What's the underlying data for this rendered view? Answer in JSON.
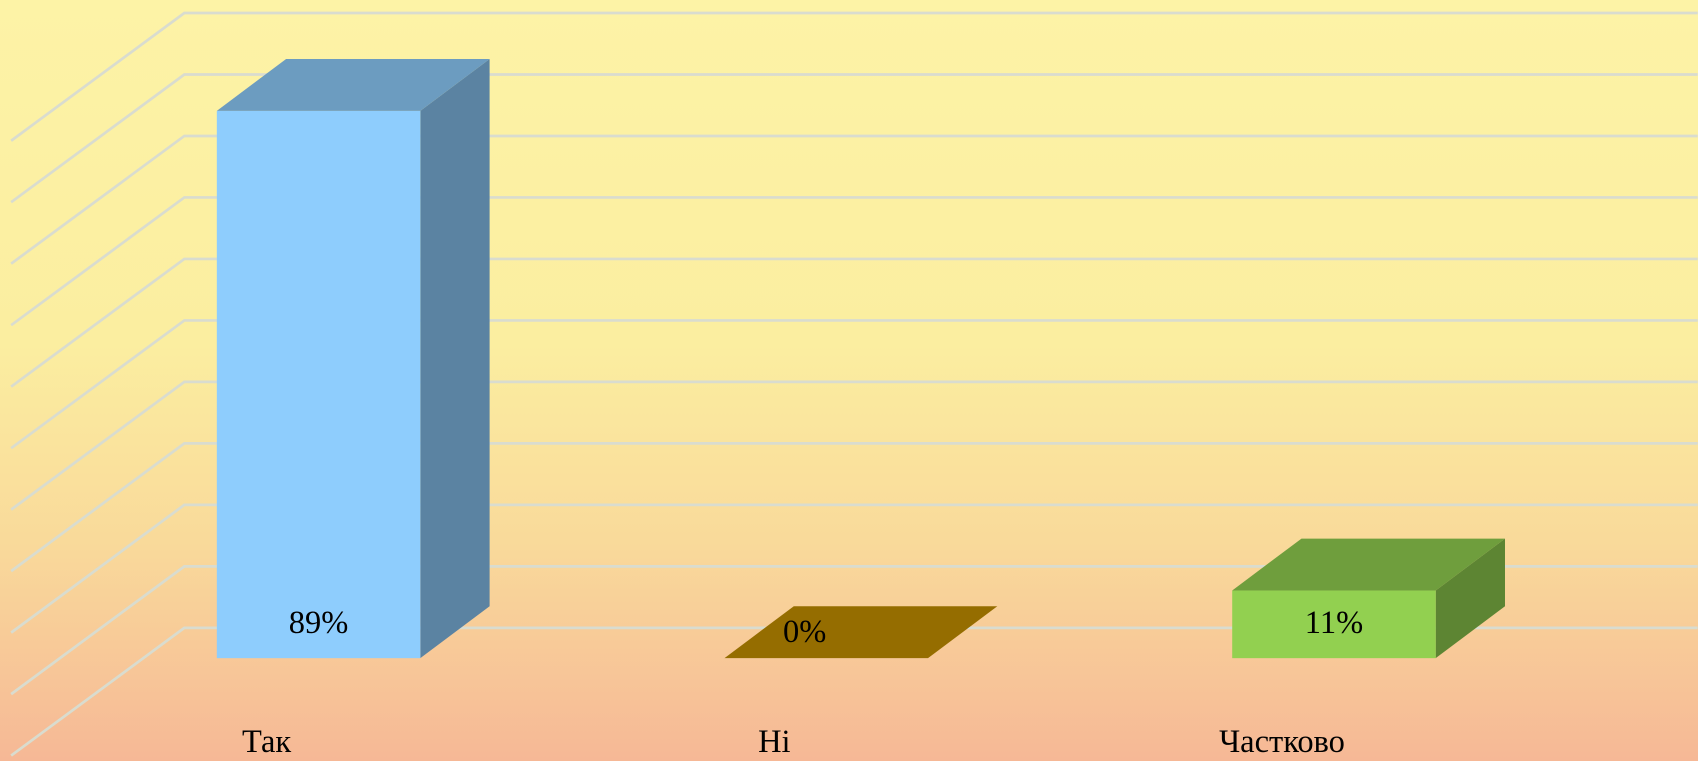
{
  "chart_data": {
    "type": "bar3d",
    "categories": [
      "Так",
      "Ні",
      "Частково"
    ],
    "values": [
      89,
      0,
      11
    ],
    "value_labels": [
      "89%",
      "0%",
      "11%"
    ],
    "colors": [
      "#8ecdfd",
      "#c49000",
      "#92d050"
    ],
    "ylim": [
      0,
      100
    ],
    "yticks": [
      0,
      10,
      20,
      30,
      40,
      50,
      60,
      70,
      80,
      90,
      100
    ],
    "grid": true
  }
}
